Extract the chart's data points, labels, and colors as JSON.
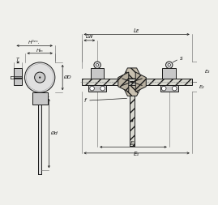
{
  "bg_color": "#f0f0ec",
  "line_color": "#1a1a1a",
  "gray_fill": "#c8c8c8",
  "gray_light": "#e0e0e0",
  "gray_dark": "#a0a0a0",
  "hatch_fill": "#d8d8d0",
  "labels": {
    "Hges": "Hᴳᵉˢ.",
    "HM": "Hₘ",
    "T": "T",
    "OD": "ØD",
    "Od": "Ød",
    "LE": "Lᴇ",
    "LW": "Lᴡ",
    "s": "s",
    "E1": "E₁",
    "E2": "E₂",
    "E3": "E₃",
    "f": "f"
  },
  "font_size": 5.0
}
